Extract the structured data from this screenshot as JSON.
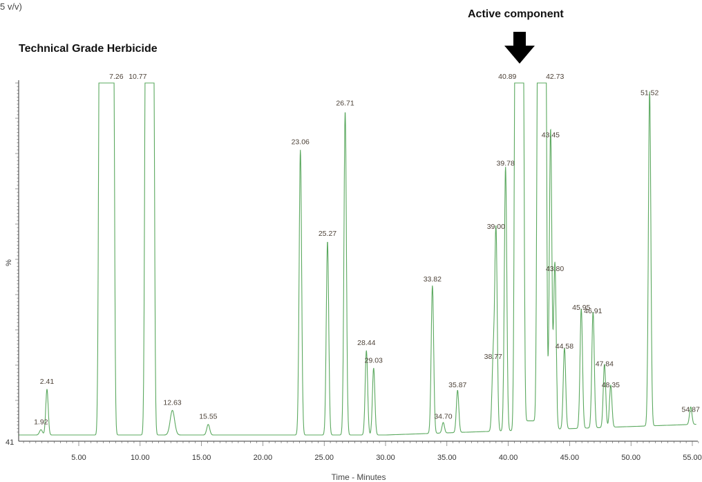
{
  "page": {
    "corner_text": "5 v/v)",
    "title": "Technical Grade Herbicide",
    "annotation": "Active component",
    "arrow_icon": "down-arrow-icon"
  },
  "chart_data": {
    "type": "line",
    "title": "Technical Grade Herbicide",
    "xlabel": "Time - Minutes",
    "ylabel": "%",
    "baseline_label": "41",
    "xlim": [
      0,
      55.5
    ],
    "ylim": [
      0,
      100
    ],
    "x_ticks": [
      5,
      10,
      15,
      20,
      25,
      30,
      35,
      40,
      45,
      50,
      55
    ],
    "x_tick_labels": [
      "5.00",
      "10.00",
      "15.00",
      "20.00",
      "25.00",
      "30.00",
      "35.00",
      "40.00",
      "45.00",
      "50.00",
      "55.00"
    ],
    "grid": false,
    "line_color": "#5aa85e",
    "label_color": "#4a3f35",
    "peaks": [
      {
        "rt": 1.92,
        "label": "1.92",
        "height": 1.5,
        "width": 0.12
      },
      {
        "rt": 2.41,
        "label": "2.41",
        "height": 13,
        "width": 0.1
      },
      {
        "rt": 7.26,
        "label": "7.26",
        "height": 100,
        "width": 0.55,
        "flat": true
      },
      {
        "rt": 10.77,
        "label": "10.77",
        "height": 100,
        "width": 0.3,
        "flat": true
      },
      {
        "rt": 12.63,
        "label": "12.63",
        "height": 7,
        "width": 0.18
      },
      {
        "rt": 15.55,
        "label": "15.55",
        "height": 3,
        "width": 0.12
      },
      {
        "rt": 23.06,
        "label": "23.06",
        "height": 81,
        "width": 0.1
      },
      {
        "rt": 25.27,
        "label": "25.27",
        "height": 55,
        "width": 0.1
      },
      {
        "rt": 26.71,
        "label": "26.71",
        "height": 92,
        "width": 0.1
      },
      {
        "rt": 28.44,
        "label": "28.44",
        "height": 24,
        "width": 0.1
      },
      {
        "rt": 29.03,
        "label": "29.03",
        "height": 19,
        "width": 0.1
      },
      {
        "rt": 33.82,
        "label": "33.82",
        "height": 42,
        "width": 0.1
      },
      {
        "rt": 34.7,
        "label": "34.70",
        "height": 3,
        "width": 0.1
      },
      {
        "rt": 35.87,
        "label": "35.87",
        "height": 12,
        "width": 0.1
      },
      {
        "rt": 38.77,
        "label": "38.77",
        "height": 20,
        "width": 0.1
      },
      {
        "rt": 39.0,
        "label": "39.00",
        "height": 57,
        "width": 0.1
      },
      {
        "rt": 39.78,
        "label": "39.78",
        "height": 75,
        "width": 0.1
      },
      {
        "rt": 40.89,
        "label": "40.89",
        "height": 100,
        "width": 0.3,
        "flat": true
      },
      {
        "rt": 42.73,
        "label": "42.73",
        "height": 100,
        "width": 0.3,
        "flat": true
      },
      {
        "rt": 43.45,
        "label": "43.45",
        "height": 83,
        "width": 0.1
      },
      {
        "rt": 43.8,
        "label": "43.80",
        "height": 45,
        "width": 0.1
      },
      {
        "rt": 44.58,
        "label": "44.58",
        "height": 23,
        "width": 0.1
      },
      {
        "rt": 45.95,
        "label": "45.95",
        "height": 34,
        "width": 0.1
      },
      {
        "rt": 46.91,
        "label": "46.91",
        "height": 33,
        "width": 0.1
      },
      {
        "rt": 47.84,
        "label": "47.84",
        "height": 18,
        "width": 0.1
      },
      {
        "rt": 48.35,
        "label": "48.35",
        "height": 12,
        "width": 0.1
      },
      {
        "rt": 51.52,
        "label": "51.52",
        "height": 95,
        "width": 0.1
      },
      {
        "rt": 54.87,
        "label": "54.87",
        "height": 5,
        "width": 0.1
      }
    ]
  }
}
